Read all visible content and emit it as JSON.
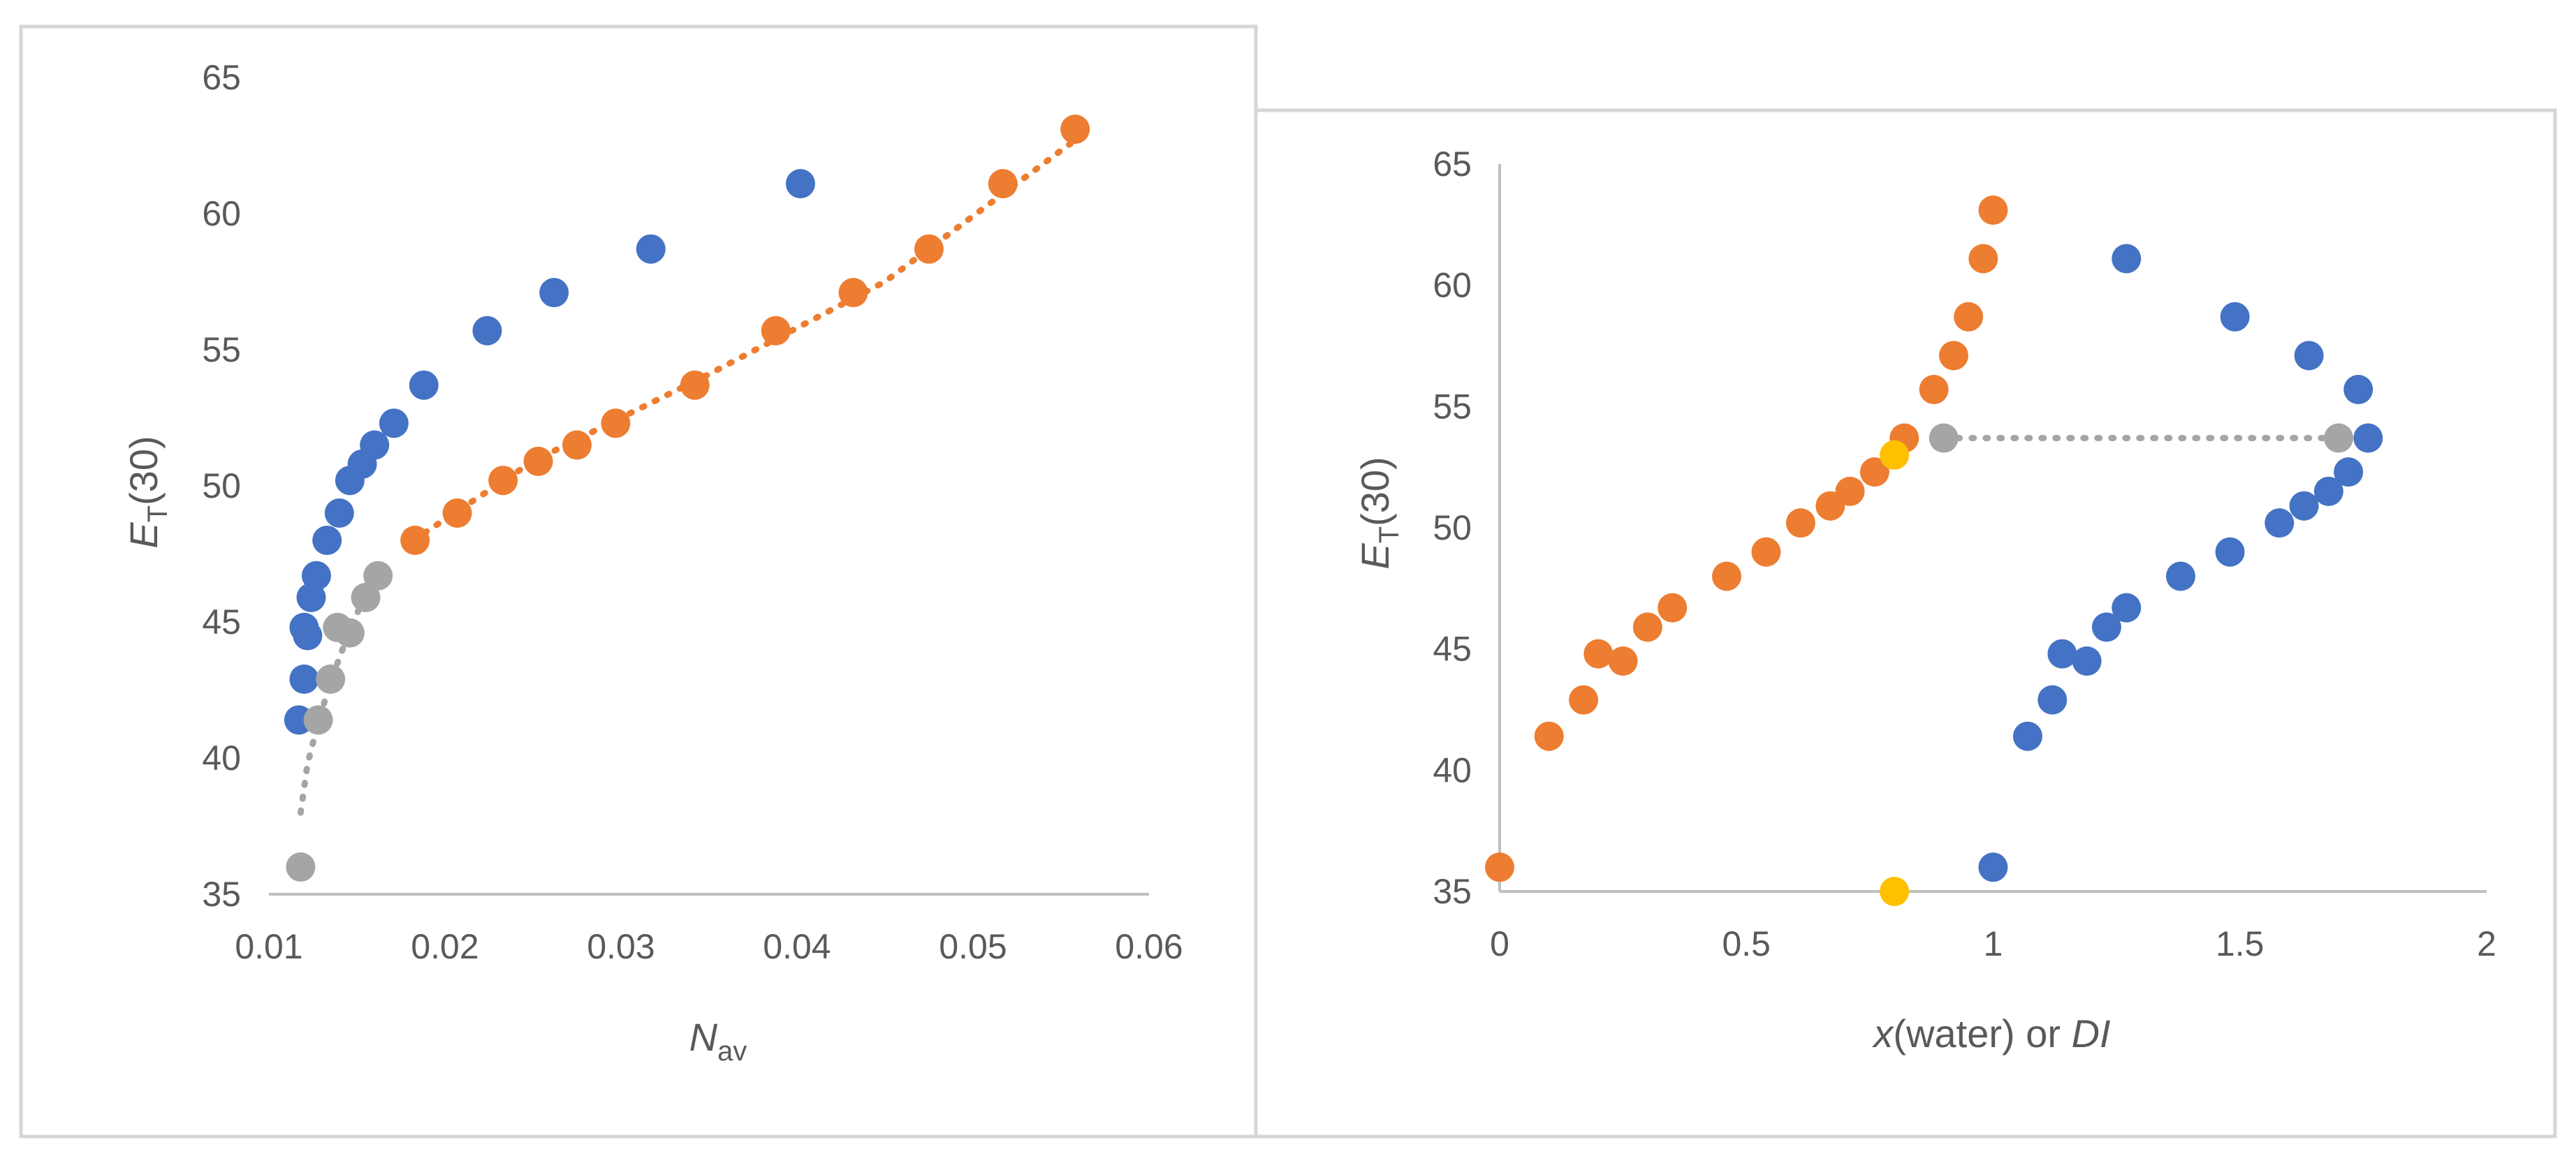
{
  "chart_data": [
    {
      "type": "scatter",
      "title": "",
      "xlabel": {
        "main": "N",
        "sub": "av"
      },
      "ylabel": {
        "main": "E",
        "sub": "T",
        "rest": "(30)"
      },
      "xlim": [
        0.01,
        0.06
      ],
      "ylim": [
        35,
        65
      ],
      "xticks": [
        0.01,
        0.02,
        0.03,
        0.04,
        0.05,
        0.06
      ],
      "yticks": [
        35,
        40,
        45,
        50,
        55,
        60,
        65
      ],
      "xtick_labels": [
        "0.01",
        "0.02",
        "0.03",
        "0.04",
        "0.05",
        "0.06"
      ],
      "ytick_labels": [
        "35",
        "40",
        "45",
        "50",
        "55",
        "60",
        "65"
      ],
      "grid": false,
      "legend": "none",
      "series": [
        {
          "color": "#4472C4",
          "points": [
            [
              0.0117,
              41.4
            ],
            [
              0.012,
              42.9
            ],
            [
              0.012,
              44.8
            ],
            [
              0.0122,
              44.5
            ],
            [
              0.0124,
              45.9
            ],
            [
              0.0127,
              46.7
            ],
            [
              0.0133,
              48.0
            ],
            [
              0.014,
              49.0
            ],
            [
              0.0146,
              50.2
            ],
            [
              0.0153,
              50.8
            ],
            [
              0.016,
              51.5
            ],
            [
              0.0171,
              52.3
            ],
            [
              0.0188,
              53.7
            ],
            [
              0.0224,
              55.7
            ],
            [
              0.0262,
              57.1
            ],
            [
              0.0317,
              58.7
            ],
            [
              0.0402,
              61.1
            ]
          ]
        },
        {
          "color": "#ED7D31",
          "points": [
            [
              0.0183,
              48.0
            ],
            [
              0.0207,
              49.0
            ],
            [
              0.0233,
              50.2
            ],
            [
              0.0253,
              50.9
            ],
            [
              0.0275,
              51.5
            ],
            [
              0.0297,
              52.3
            ],
            [
              0.0342,
              53.7
            ],
            [
              0.0388,
              55.7
            ],
            [
              0.0432,
              57.1
            ],
            [
              0.0475,
              58.7
            ],
            [
              0.0517,
              61.1
            ],
            [
              0.0558,
              63.1
            ]
          ]
        },
        {
          "color": "#A5A5A5",
          "points": [
            [
              0.0118,
              36.0
            ],
            [
              0.0128,
              41.4
            ],
            [
              0.0135,
              42.9
            ],
            [
              0.0139,
              44.8
            ],
            [
              0.0146,
              44.6
            ],
            [
              0.0155,
              45.9
            ],
            [
              0.0162,
              46.7
            ]
          ]
        }
      ],
      "trendlines": [
        {
          "color": "#ED7D31",
          "points": [
            [
              0.0182,
              48.0
            ],
            [
              0.025,
              50.9
            ],
            [
              0.035,
              54.1
            ],
            [
              0.045,
              57.5
            ],
            [
              0.0558,
              62.7
            ]
          ]
        },
        {
          "color": "#A5A5A5",
          "points": [
            [
              0.0118,
              38.0
            ],
            [
              0.0122,
              39.8
            ],
            [
              0.0128,
              41.3
            ],
            [
              0.0135,
              42.8
            ],
            [
              0.0143,
              44.2
            ],
            [
              0.0152,
              45.6
            ],
            [
              0.016,
              47.0
            ]
          ]
        }
      ]
    },
    {
      "type": "scatter",
      "title": "",
      "xlabel": {
        "a": "x",
        "b": "(water) or ",
        "c": "DI"
      },
      "ylabel": {
        "main": "E",
        "sub": "T",
        "rest": "(30)"
      },
      "xlim": [
        0,
        2
      ],
      "ylim": [
        35,
        65
      ],
      "xticks": [
        0,
        0.5,
        1,
        1.5,
        2
      ],
      "yticks": [
        35,
        40,
        45,
        50,
        55,
        60,
        65
      ],
      "xtick_labels": [
        "0",
        "0.5",
        "1",
        "1.5",
        "2"
      ],
      "ytick_labels": [
        "35",
        "40",
        "45",
        "50",
        "55",
        "60",
        "65"
      ],
      "grid": false,
      "legend": "none",
      "series": [
        {
          "color": "#ED7D31",
          "points": [
            [
              0.0,
              36.0
            ],
            [
              0.1,
              41.4
            ],
            [
              0.17,
              42.9
            ],
            [
              0.2,
              44.8
            ],
            [
              0.25,
              44.5
            ],
            [
              0.3,
              45.9
            ],
            [
              0.35,
              46.7
            ],
            [
              0.46,
              48.0
            ],
            [
              0.54,
              49.0
            ],
            [
              0.61,
              50.2
            ],
            [
              0.67,
              50.9
            ],
            [
              0.71,
              51.5
            ],
            [
              0.76,
              52.3
            ],
            [
              0.82,
              53.7
            ],
            [
              0.88,
              55.7
            ],
            [
              0.92,
              57.1
            ],
            [
              0.95,
              58.7
            ],
            [
              0.98,
              61.1
            ],
            [
              1.0,
              63.1
            ]
          ]
        },
        {
          "color": "#4472C4",
          "points": [
            [
              1.0,
              36.0
            ],
            [
              1.07,
              41.4
            ],
            [
              1.12,
              42.9
            ],
            [
              1.14,
              44.8
            ],
            [
              1.19,
              44.5
            ],
            [
              1.23,
              45.9
            ],
            [
              1.27,
              46.7
            ],
            [
              1.38,
              48.0
            ],
            [
              1.48,
              49.0
            ],
            [
              1.58,
              50.2
            ],
            [
              1.63,
              50.9
            ],
            [
              1.68,
              51.5
            ],
            [
              1.72,
              52.3
            ],
            [
              1.76,
              53.7
            ],
            [
              1.74,
              55.7
            ],
            [
              1.64,
              57.1
            ],
            [
              1.49,
              58.7
            ],
            [
              1.27,
              61.1
            ]
          ]
        },
        {
          "color": "#A5A5A5",
          "points": [
            [
              0.9,
              53.7
            ],
            [
              1.7,
              53.7
            ]
          ]
        },
        {
          "color": "#FFC000",
          "points": [
            [
              0.8,
              53.0
            ],
            [
              0.8,
              35.0
            ]
          ]
        }
      ],
      "trendlines": [
        {
          "color": "#A5A5A5",
          "points": [
            [
              0.9,
              53.7
            ],
            [
              1.7,
              53.7
            ]
          ]
        }
      ]
    }
  ]
}
